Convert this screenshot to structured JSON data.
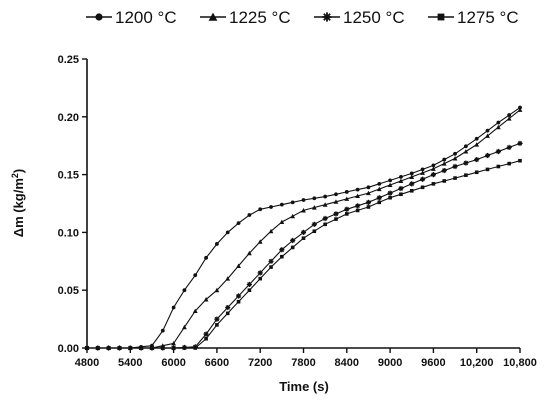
{
  "chart_data": {
    "type": "line",
    "xlabel": "Time  (s)",
    "ylabel": "Δm (kg/m²)",
    "ylabel_parts": {
      "main": "Δm (kg/m",
      "sup": "2",
      "end": ")"
    },
    "xlim": [
      4800,
      10800
    ],
    "ylim": [
      0,
      0.25
    ],
    "x_ticks": [
      4800,
      5400,
      6000,
      6600,
      7200,
      7800,
      8400,
      9000,
      9600,
      10200,
      10800
    ],
    "x_tick_labels": [
      "4800",
      "5400",
      "6000",
      "6600",
      "7200",
      "7800",
      "8400",
      "9000",
      "9600",
      "10,200",
      "10,800"
    ],
    "y_ticks": [
      0,
      0.05,
      0.1,
      0.15,
      0.2,
      0.25
    ],
    "y_tick_labels": [
      "0.00",
      "0.05",
      "0.10",
      "0.15",
      "0.20",
      "0.25"
    ],
    "legend_position": "top",
    "series": [
      {
        "name": "1200 °C",
        "marker": "circle",
        "points": [
          [
            4800,
            0
          ],
          [
            5400,
            0
          ],
          [
            5700,
            0.002
          ],
          [
            5850,
            0.015
          ],
          [
            6000,
            0.035
          ],
          [
            6150,
            0.05
          ],
          [
            6300,
            0.063
          ],
          [
            6450,
            0.078
          ],
          [
            6600,
            0.09
          ],
          [
            6750,
            0.1
          ],
          [
            6900,
            0.108
          ],
          [
            7050,
            0.115
          ],
          [
            7200,
            0.12
          ],
          [
            7500,
            0.124
          ],
          [
            7800,
            0.128
          ],
          [
            8100,
            0.131
          ],
          [
            8400,
            0.135
          ],
          [
            8700,
            0.139
          ],
          [
            9000,
            0.145
          ],
          [
            9300,
            0.151
          ],
          [
            9600,
            0.158
          ],
          [
            9900,
            0.168
          ],
          [
            10200,
            0.181
          ],
          [
            10500,
            0.195
          ],
          [
            10800,
            0.208
          ]
        ]
      },
      {
        "name": "1225 °C",
        "marker": "triangle",
        "points": [
          [
            4800,
            0
          ],
          [
            5400,
            0
          ],
          [
            5700,
            0
          ],
          [
            6000,
            0.004
          ],
          [
            6150,
            0.018
          ],
          [
            6300,
            0.032
          ],
          [
            6450,
            0.042
          ],
          [
            6600,
            0.05
          ],
          [
            6750,
            0.06
          ],
          [
            6900,
            0.071
          ],
          [
            7050,
            0.082
          ],
          [
            7200,
            0.092
          ],
          [
            7350,
            0.101
          ],
          [
            7500,
            0.109
          ],
          [
            7650,
            0.114
          ],
          [
            7800,
            0.119
          ],
          [
            8100,
            0.124
          ],
          [
            8400,
            0.129
          ],
          [
            8700,
            0.134
          ],
          [
            9000,
            0.141
          ],
          [
            9300,
            0.148
          ],
          [
            9600,
            0.155
          ],
          [
            9900,
            0.164
          ],
          [
            10200,
            0.176
          ],
          [
            10500,
            0.191
          ],
          [
            10800,
            0.206
          ]
        ]
      },
      {
        "name": "1250 °C",
        "marker": "star",
        "points": [
          [
            4800,
            0
          ],
          [
            5400,
            0
          ],
          [
            6000,
            0
          ],
          [
            6300,
            0.001
          ],
          [
            6450,
            0.012
          ],
          [
            6600,
            0.025
          ],
          [
            6750,
            0.035
          ],
          [
            6900,
            0.045
          ],
          [
            7050,
            0.055
          ],
          [
            7200,
            0.065
          ],
          [
            7350,
            0.075
          ],
          [
            7500,
            0.085
          ],
          [
            7650,
            0.093
          ],
          [
            7800,
            0.1
          ],
          [
            7950,
            0.107
          ],
          [
            8100,
            0.112
          ],
          [
            8400,
            0.12
          ],
          [
            8700,
            0.126
          ],
          [
            9000,
            0.134
          ],
          [
            9300,
            0.142
          ],
          [
            9600,
            0.15
          ],
          [
            9900,
            0.157
          ],
          [
            10200,
            0.163
          ],
          [
            10500,
            0.17
          ],
          [
            10800,
            0.177
          ]
        ]
      },
      {
        "name": "1275 °C",
        "marker": "square",
        "points": [
          [
            4800,
            0
          ],
          [
            5400,
            0
          ],
          [
            6000,
            0
          ],
          [
            6300,
            0
          ],
          [
            6450,
            0.008
          ],
          [
            6600,
            0.02
          ],
          [
            6750,
            0.03
          ],
          [
            6900,
            0.04
          ],
          [
            7050,
            0.05
          ],
          [
            7200,
            0.06
          ],
          [
            7350,
            0.07
          ],
          [
            7500,
            0.079
          ],
          [
            7650,
            0.087
          ],
          [
            7800,
            0.095
          ],
          [
            7950,
            0.101
          ],
          [
            8100,
            0.107
          ],
          [
            8400,
            0.116
          ],
          [
            8700,
            0.122
          ],
          [
            9000,
            0.13
          ],
          [
            9300,
            0.136
          ],
          [
            9600,
            0.142
          ],
          [
            9900,
            0.147
          ],
          [
            10200,
            0.152
          ],
          [
            10500,
            0.157
          ],
          [
            10800,
            0.162
          ]
        ]
      }
    ]
  }
}
